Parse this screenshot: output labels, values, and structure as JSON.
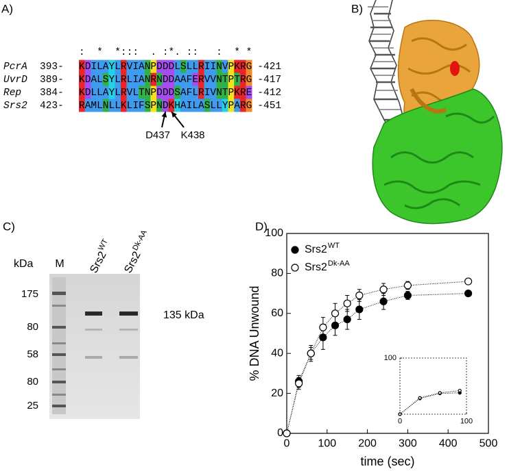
{
  "panels": {
    "a": "A)",
    "b": "B)",
    "c": "C)",
    "d": "D)"
  },
  "alignment": {
    "conservation": ":  *  *:::  . :*. ::   :  * *",
    "rows": [
      {
        "name": "PcrA",
        "start": "393-",
        "sequence": "KDILAYLRVIANPDDDLSLLRIINVPKRG",
        "end": "-421"
      },
      {
        "name": "UvrD",
        "start": "389-",
        "sequence": "KDALSYLRLIANRNDDAAFERVVNTPTRG",
        "end": "-417"
      },
      {
        "name": "Rep",
        "start": "384-",
        "sequence": "KDLLAYLRVLTNPDDDSAFLRIVNTPKRE",
        "end": "-412"
      },
      {
        "name": "Srs2",
        "start": "423-",
        "sequence": "RAMLNLLKLIFSPNDKHAILASLLYPARG",
        "end": "-451"
      }
    ],
    "residue_colors": {
      "K": "#e8262a",
      "R": "#e8262a",
      "D": "#a64cf0",
      "E": "#a64cf0",
      "A": "#3f9bf0",
      "I": "#3f9bf0",
      "L": "#3f9bf0",
      "M": "#3f9bf0",
      "F": "#3f9bf0",
      "V": "#3f9bf0",
      "W": "#3f9bf0",
      "S": "#2fb14a",
      "T": "#2fb14a",
      "N": "#2fb14a",
      "Q": "#2fb14a",
      "Y": "#22d3e6",
      "H": "#22d3e6",
      "P": "#f4e21c",
      "G": "#f08a2a",
      "C": "#f08080"
    },
    "arrows": [
      "D437",
      "K438"
    ]
  },
  "gel": {
    "unit": "kDa",
    "lanes": [
      {
        "label": "M"
      },
      {
        "label": "Srs2",
        "superscript": "WT"
      },
      {
        "label": "Srs2",
        "superscript": "Dk-AA"
      }
    ],
    "ladder": [
      "175",
      "80",
      "58",
      "80",
      "25"
    ],
    "band_label": "135 kDa"
  },
  "chart_data": [
    {
      "type": "scatter",
      "x_label": "time (sec)",
      "y_label": "% DNA Unwound",
      "xlim": [
        0,
        500
      ],
      "ylim": [
        0,
        100
      ],
      "xticks": [
        0,
        100,
        200,
        300,
        400,
        500
      ],
      "yticks": [
        0,
        20,
        40,
        60,
        80,
        100
      ],
      "legend": "top-left",
      "series": [
        {
          "name": "Srs2",
          "superscript": "WT",
          "color": "#000000",
          "marker": "filled",
          "x": [
            0,
            30,
            60,
            90,
            120,
            150,
            180,
            240,
            300,
            450
          ],
          "values": [
            0,
            26,
            40,
            48,
            54,
            57,
            62,
            66,
            69,
            70
          ],
          "errors": [
            0,
            3,
            4,
            6,
            5,
            5,
            5,
            4,
            2,
            1
          ]
        },
        {
          "name": "Srs2",
          "superscript": "Dk-AA",
          "color": "#000000",
          "marker": "open",
          "x": [
            0,
            30,
            60,
            90,
            120,
            150,
            180,
            240,
            300,
            450
          ],
          "values": [
            0,
            25,
            40,
            53,
            60,
            65,
            69,
            72,
            74,
            76
          ],
          "errors": [
            0,
            3,
            3,
            5,
            5,
            4,
            3,
            3,
            2,
            1
          ]
        }
      ]
    },
    {
      "type": "scatter",
      "xlim": [
        0,
        100
      ],
      "ylim": [
        0,
        100
      ],
      "xticks": [
        0,
        100
      ],
      "yticks": [
        100
      ],
      "series": [
        {
          "color": "#000000",
          "marker": "filled",
          "x": [
            0,
            30,
            60,
            90
          ],
          "values": [
            0,
            28,
            37,
            38
          ]
        },
        {
          "color": "#000000",
          "marker": "open",
          "x": [
            0,
            30,
            60,
            90
          ],
          "values": [
            0,
            29,
            38,
            42
          ]
        }
      ]
    }
  ]
}
